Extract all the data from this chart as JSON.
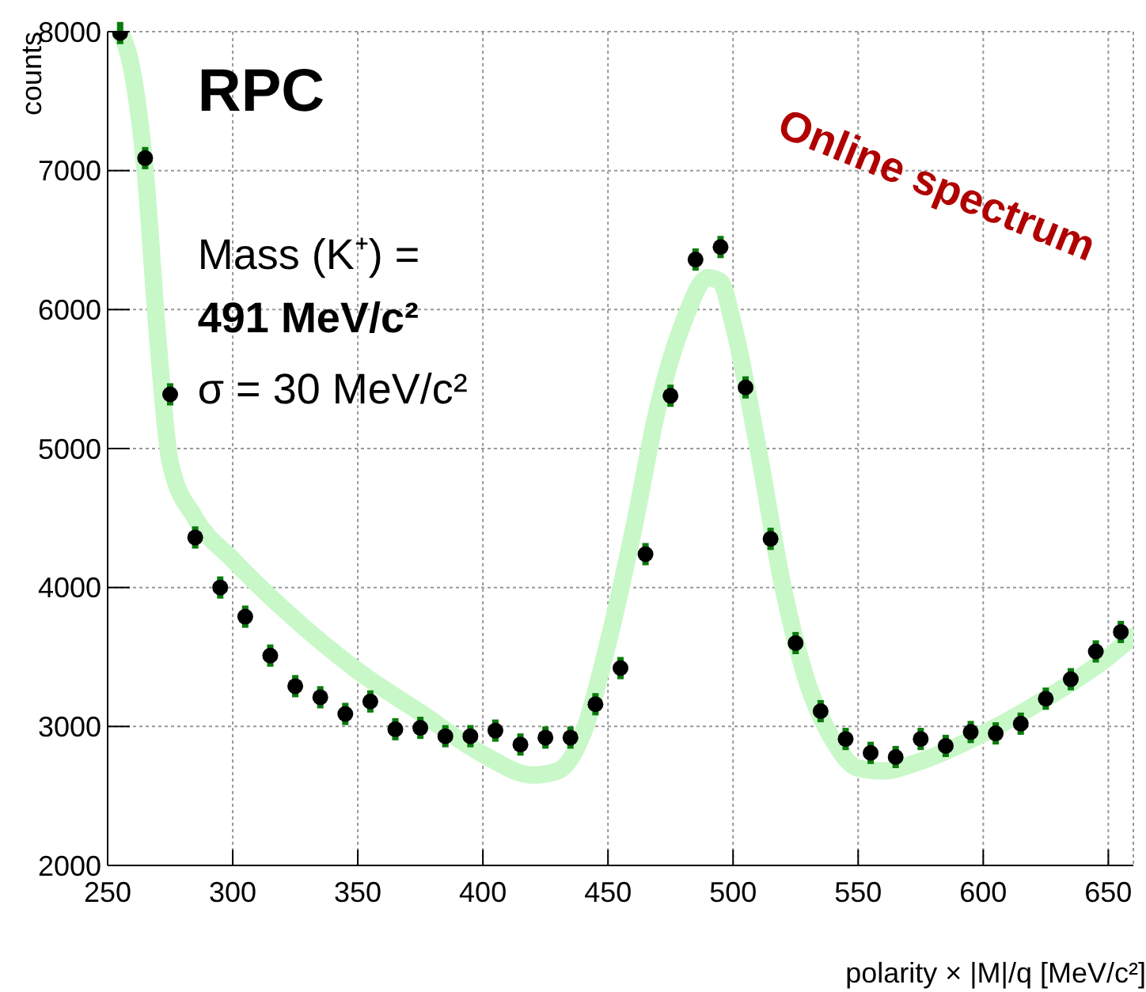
{
  "chart_data": {
    "type": "scatter",
    "xlabel": "polarity × |M|/q [MeV/c²]",
    "ylabel": "counts",
    "annotations": [
      "RPC",
      "Mass (K⁺) =",
      "491 MeV/c²",
      "σ = 30 MeV/c²",
      "Online spectrum"
    ],
    "xlim": [
      250,
      660
    ],
    "xticks": [
      250,
      300,
      350,
      400,
      450,
      500,
      550,
      600,
      650
    ],
    "ylim": [
      2000,
      8000
    ],
    "yticks": [
      2000,
      3000,
      4000,
      5000,
      6000,
      7000,
      8000
    ],
    "grid": true,
    "legend": false,
    "series": [
      {
        "marker": "circle",
        "color": "#000000",
        "x": [
          255,
          265,
          275,
          285,
          295,
          305,
          315,
          325,
          335,
          345,
          355,
          365,
          375,
          385,
          395,
          405,
          415,
          425,
          435,
          445,
          455,
          465,
          475,
          485,
          495,
          505,
          515,
          525,
          535,
          545,
          555,
          565,
          575,
          585,
          595,
          605,
          615,
          625,
          635,
          645,
          655
        ],
        "values": [
          7990,
          7090,
          5390,
          4360,
          4000,
          3790,
          3510,
          3290,
          3210,
          3090,
          3180,
          2980,
          2990,
          2930,
          2930,
          2970,
          2870,
          2920,
          2920,
          3160,
          3420,
          4240,
          5380,
          6360,
          6450,
          5440,
          4350,
          3600,
          3110,
          2910,
          2810,
          2780,
          2910,
          2860,
          2960,
          2950,
          3020,
          3200,
          3340,
          3540,
          3680
        ],
        "errors": [
          80,
          80,
          80,
          80,
          80,
          80,
          80,
          80,
          80,
          80,
          80,
          80,
          80,
          80,
          80,
          80,
          80,
          80,
          80,
          80,
          80,
          80,
          80,
          80,
          80,
          80,
          80,
          80,
          80,
          80,
          80,
          80,
          80,
          80,
          80,
          80,
          80,
          80,
          80,
          80,
          80
        ]
      },
      {
        "type": "line",
        "marker": "none",
        "color": "#c8f8c8",
        "x": [
          255,
          260,
          265,
          270,
          275,
          285,
          300,
          320,
          350,
          375,
          400,
          420,
          430,
          440,
          450,
          460,
          470,
          480,
          490,
          495,
          500,
          510,
          520,
          530,
          540,
          550,
          560,
          575,
          600,
          625,
          650,
          660
        ],
        "values": [
          8000,
          7700,
          7000,
          5800,
          4900,
          4500,
          4200,
          3850,
          3400,
          3100,
          2800,
          2650,
          2680,
          2950,
          3600,
          4400,
          5300,
          5900,
          6230,
          6200,
          5900,
          5000,
          4000,
          3300,
          2900,
          2700,
          2680,
          2750,
          2950,
          3200,
          3500,
          3650
        ]
      }
    ]
  }
}
